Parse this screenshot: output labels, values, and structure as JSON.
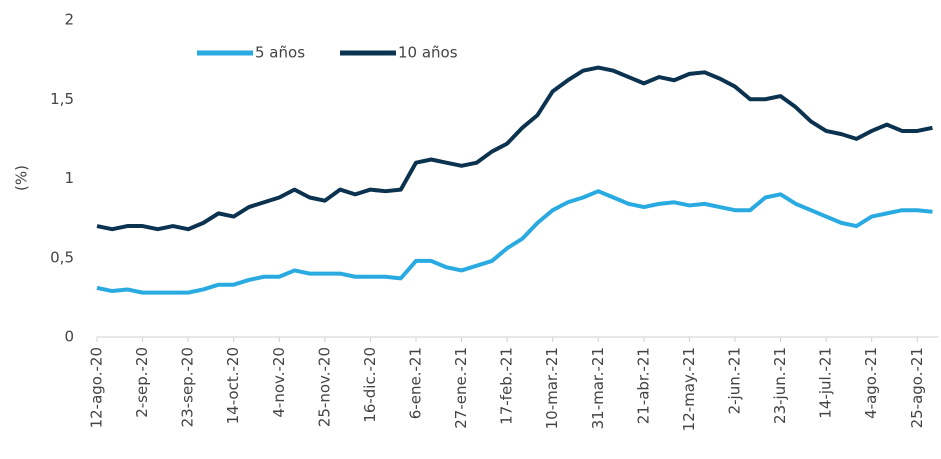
{
  "chart_data": {
    "type": "line",
    "ylabel": "(%)",
    "categories": [
      "12-ago.-20",
      null,
      null,
      "2-sep.-20",
      null,
      null,
      "23-sep.-20",
      null,
      null,
      "14-oct.-20",
      null,
      null,
      "4-nov.-20",
      null,
      null,
      "25-nov.-20",
      null,
      null,
      "16-dic.-20",
      null,
      null,
      "6-ene.-21",
      null,
      null,
      "27-ene.-21",
      null,
      null,
      "17-feb.-21",
      null,
      null,
      "10-mar.-21",
      null,
      null,
      "31-mar.-21",
      null,
      null,
      "21-abr.-21",
      null,
      null,
      "12-may.-21",
      null,
      null,
      "2-jun.-21",
      null,
      null,
      "23-jun.-21",
      null,
      null,
      "14-jul.-21",
      null,
      null,
      "4-ago.-21",
      null,
      null,
      "25-ago.-21",
      null
    ],
    "series": [
      {
        "name": "5 años",
        "color": "#29aae1",
        "values": [
          0.31,
          0.29,
          0.3,
          0.28,
          0.28,
          0.28,
          0.28,
          0.3,
          0.33,
          0.33,
          0.36,
          0.38,
          0.38,
          0.42,
          0.4,
          0.4,
          0.4,
          0.38,
          0.38,
          0.38,
          0.37,
          0.48,
          0.48,
          0.44,
          0.42,
          0.45,
          0.48,
          0.56,
          0.62,
          0.72,
          0.8,
          0.85,
          0.88,
          0.92,
          0.88,
          0.84,
          0.82,
          0.84,
          0.85,
          0.83,
          0.84,
          0.82,
          0.8,
          0.8,
          0.88,
          0.9,
          0.84,
          0.8,
          0.76,
          0.72,
          0.7,
          0.76,
          0.78,
          0.8,
          0.8,
          0.79
        ]
      },
      {
        "name": "10 años",
        "color": "#0b3350",
        "values": [
          0.7,
          0.68,
          0.7,
          0.7,
          0.68,
          0.7,
          0.68,
          0.72,
          0.78,
          0.76,
          0.82,
          0.85,
          0.88,
          0.93,
          0.88,
          0.86,
          0.93,
          0.9,
          0.93,
          0.92,
          0.93,
          1.1,
          1.12,
          1.1,
          1.08,
          1.1,
          1.17,
          1.22,
          1.32,
          1.4,
          1.55,
          1.62,
          1.68,
          1.7,
          1.68,
          1.64,
          1.6,
          1.64,
          1.62,
          1.66,
          1.67,
          1.63,
          1.58,
          1.5,
          1.5,
          1.52,
          1.45,
          1.36,
          1.3,
          1.28,
          1.25,
          1.3,
          1.34,
          1.3,
          1.3,
          1.32
        ]
      }
    ],
    "ylim": [
      0,
      2
    ],
    "yticks": [
      0,
      {
        "value": 0.5,
        "label": "0,5"
      },
      1,
      {
        "value": 1.5,
        "label": "1,5"
      },
      2
    ],
    "grid": false,
    "legend": "top"
  }
}
